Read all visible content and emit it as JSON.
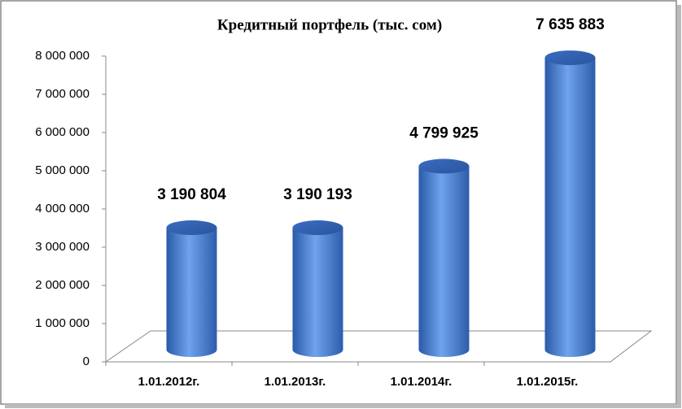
{
  "chart_data": {
    "type": "bar",
    "title": "Кредитный портфель  (тыс. сом)",
    "categories": [
      "1.01.2012г.",
      "1.01.2013г.",
      "1.01.2014г.",
      "1.01.2015г."
    ],
    "values": [
      3190804,
      3190193,
      4799925,
      7635883
    ],
    "value_labels": [
      "3 190 804",
      "3 190 193",
      "4 799 925",
      "7 635 883"
    ],
    "color": "#4a7ed0",
    "ylim": [
      0,
      8000000
    ],
    "yticks": [
      0,
      {
        "value": 1000000,
        "label": "1 000 000"
      },
      {
        "value": 2000000,
        "label": "2 000 000"
      },
      {
        "value": 3000000,
        "label": "3 000 000"
      },
      {
        "value": 4000000,
        "label": "4 000 000"
      },
      {
        "value": 5000000,
        "label": "5 000 000"
      },
      {
        "value": 6000000,
        "label": "6 000 000"
      },
      {
        "value": 7000000,
        "label": "7 000 000"
      },
      {
        "value": 8000000,
        "label": "8 000 000"
      }
    ]
  }
}
